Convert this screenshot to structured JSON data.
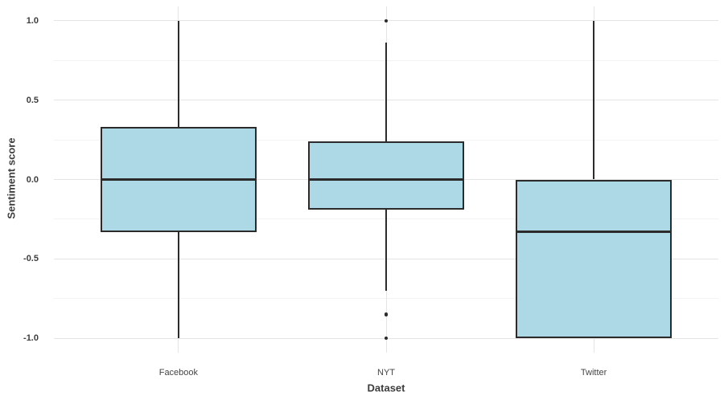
{
  "chart_data": {
    "type": "boxplot",
    "title": "",
    "xlabel": "Dataset",
    "ylabel": "Sentiment score",
    "categories": [
      "Facebook",
      "NYT",
      "Twitter"
    ],
    "y_axis": {
      "ticks": [
        {
          "label": "1.0",
          "value": 1.0
        },
        {
          "label": "0.5",
          "value": 0.5
        },
        {
          "label": "0.0",
          "value": 0.0
        },
        {
          "label": "-0.5",
          "value": -0.5
        },
        {
          "label": "-1.0",
          "value": -1.0
        }
      ],
      "minor_gridlines": [
        0.75,
        0.25,
        -0.25,
        -0.75
      ],
      "range": [
        -1.09,
        1.09
      ]
    },
    "grid": {
      "horizontal_major": true,
      "horizontal_minor": true,
      "vertical_at_categories": true
    },
    "legend": "none",
    "series": [
      {
        "category": "Facebook",
        "whisker_low": -1.0,
        "q1": -0.33,
        "median": 0.0,
        "q3": 0.33,
        "whisker_high": 1.0,
        "outliers": []
      },
      {
        "category": "NYT",
        "whisker_low": -0.7,
        "q1": -0.19,
        "median": 0.0,
        "q3": 0.24,
        "whisker_high": 0.86,
        "outliers": [
          1.0,
          -0.85,
          -1.0
        ]
      },
      {
        "category": "Twitter",
        "whisker_low": -1.0,
        "q1": -1.0,
        "median": -0.33,
        "q3": 0.0,
        "whisker_high": 1.0,
        "outliers": []
      }
    ],
    "colors": {
      "box_fill": "#ADD8E6",
      "box_border": "#2b2b2b",
      "median": "#2b2b2b",
      "whisker": "#2b2b2b",
      "outlier": "#2b2b2b",
      "grid_major": "#e4e4e4",
      "grid_minor": "#f3f3f3",
      "axis_text": "#3d3d3d",
      "background": "#ffffff"
    }
  }
}
